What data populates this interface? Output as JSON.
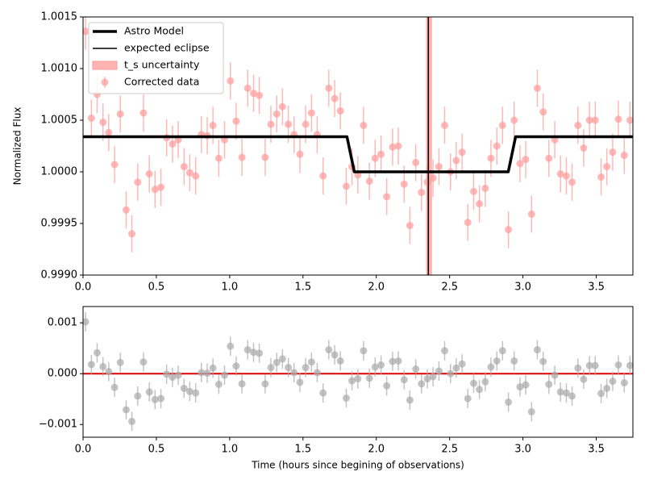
{
  "chart_data": [
    {
      "type": "scatter",
      "ylabel": "Normalized Flux",
      "xlim": [
        0,
        3.75
      ],
      "ylim": [
        0.999,
        1.0015
      ],
      "xticks": [
        {
          "value": 0,
          "label": "0.0"
        },
        {
          "value": 0.5,
          "label": "0.5"
        },
        {
          "value": 1,
          "label": "1.0"
        },
        {
          "value": 1.5,
          "label": "1.5"
        },
        {
          "value": 2,
          "label": "2.0"
        },
        {
          "value": 2.5,
          "label": "2.5"
        },
        {
          "value": 3,
          "label": "3.0"
        },
        {
          "value": 3.5,
          "label": "3.5"
        }
      ],
      "yticks": [
        {
          "value": 0.999,
          "label": "0.9990"
        },
        {
          "value": 0.9995,
          "label": "0.9995"
        },
        {
          "value": 1,
          "label": "1.0000"
        },
        {
          "value": 1.0005,
          "label": "1.0005"
        },
        {
          "value": 1.001,
          "label": "1.0010"
        },
        {
          "value": 1.0015,
          "label": "1.0015"
        }
      ],
      "legend": "upper left",
      "model": {
        "name": "Astro Model",
        "color": "#000000",
        "x": [
          0,
          1.8,
          1.85,
          2.9,
          2.95,
          3.75
        ],
        "values": [
          1.00034,
          1.00034,
          1.0,
          1.0,
          1.00034,
          1.00034
        ]
      },
      "eclipse": {
        "name": "expected eclipse",
        "color": "#000000",
        "x": 2.355
      },
      "uncertainty": {
        "name": "t_s uncertainty",
        "color": "#ff9999",
        "x": [
          2.34,
          2.38
        ]
      },
      "series": [
        {
          "name": "Corrected data",
          "color": "#ff9a9a",
          "yerr": 0.00018,
          "x": [
            0.017,
            0.057,
            0.096,
            0.136,
            0.175,
            0.215,
            0.254,
            0.294,
            0.333,
            0.373,
            0.412,
            0.452,
            0.491,
            0.531,
            0.57,
            0.61,
            0.649,
            0.689,
            0.728,
            0.768,
            0.807,
            0.847,
            0.886,
            0.926,
            0.965,
            1.005,
            1.044,
            1.084,
            1.123,
            1.163,
            1.202,
            1.242,
            1.281,
            1.321,
            1.36,
            1.4,
            1.439,
            1.479,
            1.518,
            1.558,
            1.597,
            1.637,
            1.676,
            1.716,
            1.755,
            1.795,
            1.834,
            1.874,
            1.913,
            1.953,
            1.992,
            2.032,
            2.071,
            2.111,
            2.15,
            2.19,
            2.229,
            2.269,
            2.308,
            2.348,
            2.387,
            2.427,
            2.466,
            2.506,
            2.545,
            2.585,
            2.624,
            2.664,
            2.703,
            2.743,
            2.782,
            2.822,
            2.861,
            2.901,
            2.94,
            2.98,
            3.019,
            3.059,
            3.098,
            3.138,
            3.177,
            3.217,
            3.256,
            3.296,
            3.335,
            3.375,
            3.414,
            3.454,
            3.493,
            3.533,
            3.572,
            3.612,
            3.651,
            3.691,
            3.73
          ],
          "values": [
            1.00136,
            1.00052,
            1.00075,
            1.00048,
            1.00038,
            1.00007,
            1.00056,
            0.99963,
            0.9994,
            0.9999,
            1.00057,
            0.99998,
            0.99983,
            0.99985,
            1.00033,
            1.00027,
            1.00031,
            1.00005,
            0.99999,
            0.99996,
            1.00036,
            1.00035,
            1.00045,
            1.00013,
            1.00031,
            1.00088,
            1.00049,
            1.00014,
            1.00081,
            1.00076,
            1.00074,
            1.00014,
            1.00046,
            1.00056,
            1.00063,
            1.00046,
            1.00036,
            1.00017,
            1.00046,
            1.00057,
            1.00036,
            0.99996,
            1.00081,
            1.00071,
            1.00059,
            0.99986,
            1.00005,
            0.99997,
            1.00045,
            0.99991,
            1.00013,
            1.00017,
            0.99976,
            1.00024,
            1.00025,
            0.99988,
            0.99948,
            1.00009,
            0.9998,
            0.9999,
            0.99994,
            1.00005,
            1.00045,
            1.0,
            1.00011,
            1.00019,
            0.99951,
            0.99981,
            0.99969,
            0.99984,
            1.00013,
            1.00025,
            1.00045,
            0.99944,
            1.0005,
            1.00008,
            1.00012,
            0.99959,
            1.00081,
            1.00058,
            1.00013,
            1.00031,
            0.99998,
            0.99996,
            0.9999,
            1.00045,
            1.00023,
            1.0005,
            1.0005,
            0.99995,
            1.00005,
            1.00019,
            1.00051,
            1.00016,
            1.0005
          ]
        }
      ]
    },
    {
      "type": "scatter",
      "xlabel": "Time (hours since begining of observations)",
      "xlim": [
        0,
        3.75
      ],
      "ylim": [
        -0.00125,
        0.00132
      ],
      "xticks": [
        {
          "value": 0,
          "label": "0.0"
        },
        {
          "value": 0.5,
          "label": "0.5"
        },
        {
          "value": 1,
          "label": "1.0"
        },
        {
          "value": 1.5,
          "label": "1.5"
        },
        {
          "value": 2,
          "label": "2.0"
        },
        {
          "value": 2.5,
          "label": "2.5"
        },
        {
          "value": 3,
          "label": "3.0"
        },
        {
          "value": 3.5,
          "label": "3.5"
        }
      ],
      "yticks": [
        {
          "value": -0.001,
          "label": "−0.001"
        },
        {
          "value": 0,
          "label": "0.000"
        },
        {
          "value": 0.001,
          "label": "0.001"
        }
      ],
      "hline": {
        "value": 0,
        "color": "#dd0000"
      },
      "series": [
        {
          "color": "#aaaaaa",
          "yerr": 0.00019,
          "x": [
            0.017,
            0.057,
            0.096,
            0.136,
            0.175,
            0.215,
            0.254,
            0.294,
            0.333,
            0.373,
            0.412,
            0.452,
            0.491,
            0.531,
            0.57,
            0.61,
            0.649,
            0.689,
            0.728,
            0.768,
            0.807,
            0.847,
            0.886,
            0.926,
            0.965,
            1.005,
            1.044,
            1.084,
            1.123,
            1.163,
            1.202,
            1.242,
            1.281,
            1.321,
            1.36,
            1.4,
            1.439,
            1.479,
            1.518,
            1.558,
            1.597,
            1.637,
            1.676,
            1.716,
            1.755,
            1.795,
            1.834,
            1.874,
            1.913,
            1.953,
            1.992,
            2.032,
            2.071,
            2.111,
            2.15,
            2.19,
            2.229,
            2.269,
            2.308,
            2.348,
            2.387,
            2.427,
            2.466,
            2.506,
            2.545,
            2.585,
            2.624,
            2.664,
            2.703,
            2.743,
            2.782,
            2.822,
            2.861,
            2.901,
            2.94,
            2.98,
            3.019,
            3.059,
            3.098,
            3.138,
            3.177,
            3.217,
            3.256,
            3.296,
            3.335,
            3.375,
            3.414,
            3.454,
            3.493,
            3.533,
            3.572,
            3.612,
            3.651,
            3.691,
            3.73
          ],
          "values": [
            0.00102,
            0.00018,
            0.00041,
            0.00014,
            4e-05,
            -0.00027,
            0.00022,
            -0.00071,
            -0.00094,
            -0.00044,
            0.00023,
            -0.00036,
            -0.00051,
            -0.00049,
            -1e-05,
            -7e-05,
            -3e-05,
            -0.00029,
            -0.00035,
            -0.00038,
            2e-05,
            1e-05,
            0.00011,
            -0.00021,
            -3e-05,
            0.00054,
            0.00015,
            -0.0002,
            0.00047,
            0.00042,
            0.0004,
            -0.0002,
            0.00012,
            0.00022,
            0.00029,
            0.00012,
            2e-05,
            -0.00017,
            0.00012,
            0.00023,
            2e-05,
            -0.00038,
            0.00047,
            0.00037,
            0.00025,
            -0.00048,
            -0.00014,
            -0.0001,
            0.00045,
            -9e-05,
            0.00013,
            0.00017,
            -0.00024,
            0.00024,
            0.00025,
            -0.00012,
            -0.00052,
            9e-05,
            -0.0002,
            -0.0001,
            -6e-05,
            5e-05,
            0.00045,
            0.0,
            0.00011,
            0.00019,
            -0.00049,
            -0.00019,
            -0.00031,
            -0.00016,
            0.00013,
            0.00025,
            0.00045,
            -0.00056,
            0.00025,
            -0.00026,
            -0.00022,
            -0.00075,
            0.00047,
            0.00024,
            -0.00021,
            -3e-05,
            -0.00036,
            -0.00038,
            -0.00044,
            0.00011,
            -0.00011,
            0.00016,
            0.00016,
            -0.00039,
            -0.00029,
            -0.00015,
            0.00017,
            -0.00018,
            0.00016
          ]
        }
      ]
    }
  ]
}
